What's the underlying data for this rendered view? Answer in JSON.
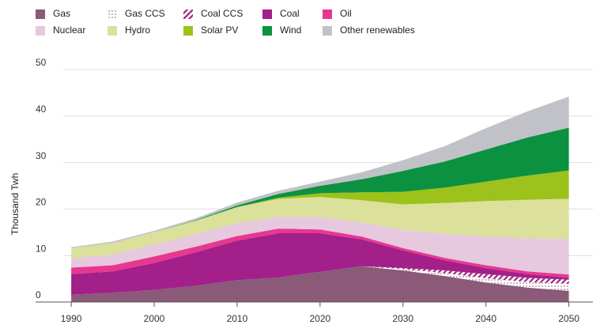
{
  "chart_data": {
    "type": "stacked-area",
    "y_label": "Thousand Twh",
    "x": [
      1990,
      1995,
      2000,
      2005,
      2010,
      2015,
      2020,
      2025,
      2030,
      2035,
      2040,
      2045,
      2050
    ],
    "xlim": [
      1985.7,
      2052.9
    ],
    "xticks": [
      1990,
      2000,
      2010,
      2020,
      2030,
      2040,
      2050
    ],
    "ylim": [
      0,
      50
    ],
    "yticks": [
      0,
      10,
      20,
      30,
      40,
      50
    ],
    "grid": true,
    "series": [
      {
        "name": "Gas",
        "color": "#8a5a78",
        "values": [
          1.6,
          2.0,
          2.6,
          3.5,
          4.7,
          5.3,
          6.5,
          7.7,
          6.8,
          5.6,
          4.2,
          3.1,
          2.4
        ]
      },
      {
        "name": "Gas CCS",
        "color": "#8a5a78",
        "pattern": "dots",
        "values": [
          0,
          0,
          0,
          0,
          0,
          0,
          0,
          0,
          0.3,
          0.6,
          0.9,
          1.2,
          1.5
        ]
      },
      {
        "name": "Coal CCS",
        "color": "#a3237f",
        "pattern": "hatch",
        "values": [
          0,
          0,
          0,
          0,
          0,
          0,
          0,
          0,
          0.2,
          0.6,
          0.9,
          0.9,
          0.9
        ]
      },
      {
        "name": "Coal",
        "color": "#a31f8a",
        "values": [
          4.4,
          4.6,
          5.8,
          7.2,
          8.5,
          9.5,
          8.3,
          5.8,
          3.8,
          2.2,
          1.3,
          0.8,
          0.4
        ]
      },
      {
        "name": "Oil",
        "color": "#e8378f",
        "values": [
          1.4,
          1.3,
          1.4,
          1.2,
          1.0,
          1.0,
          0.8,
          0.6,
          0.5,
          0.5,
          0.6,
          0.6,
          0.7
        ]
      },
      {
        "name": "Nuclear",
        "color": "#e6c8df",
        "values": [
          2.0,
          2.3,
          2.6,
          2.7,
          2.8,
          2.5,
          2.7,
          3.0,
          3.9,
          5.2,
          6.2,
          7.1,
          7.7
        ]
      },
      {
        "name": "Hydro",
        "color": "#dbe09a",
        "values": [
          2.2,
          2.5,
          2.6,
          2.9,
          3.4,
          3.9,
          4.3,
          4.8,
          5.5,
          6.6,
          7.6,
          8.3,
          8.6
        ]
      },
      {
        "name": "Solar PV",
        "color": "#9cc21b",
        "values": [
          0,
          0,
          0,
          0,
          0.03,
          0.25,
          0.8,
          1.7,
          2.7,
          3.3,
          4.2,
          5.2,
          6.1
        ]
      },
      {
        "name": "Wind",
        "color": "#0c9140",
        "values": [
          0,
          0,
          0,
          0.1,
          0.35,
          0.8,
          1.6,
          2.8,
          4.5,
          5.6,
          6.9,
          8.2,
          9.2
        ]
      },
      {
        "name": "Other renewables",
        "color": "#c0c2c7",
        "values": [
          0.2,
          0.3,
          0.3,
          0.4,
          0.6,
          0.7,
          0.9,
          1.5,
          2.3,
          3.3,
          4.6,
          5.6,
          6.7
        ]
      }
    ]
  }
}
